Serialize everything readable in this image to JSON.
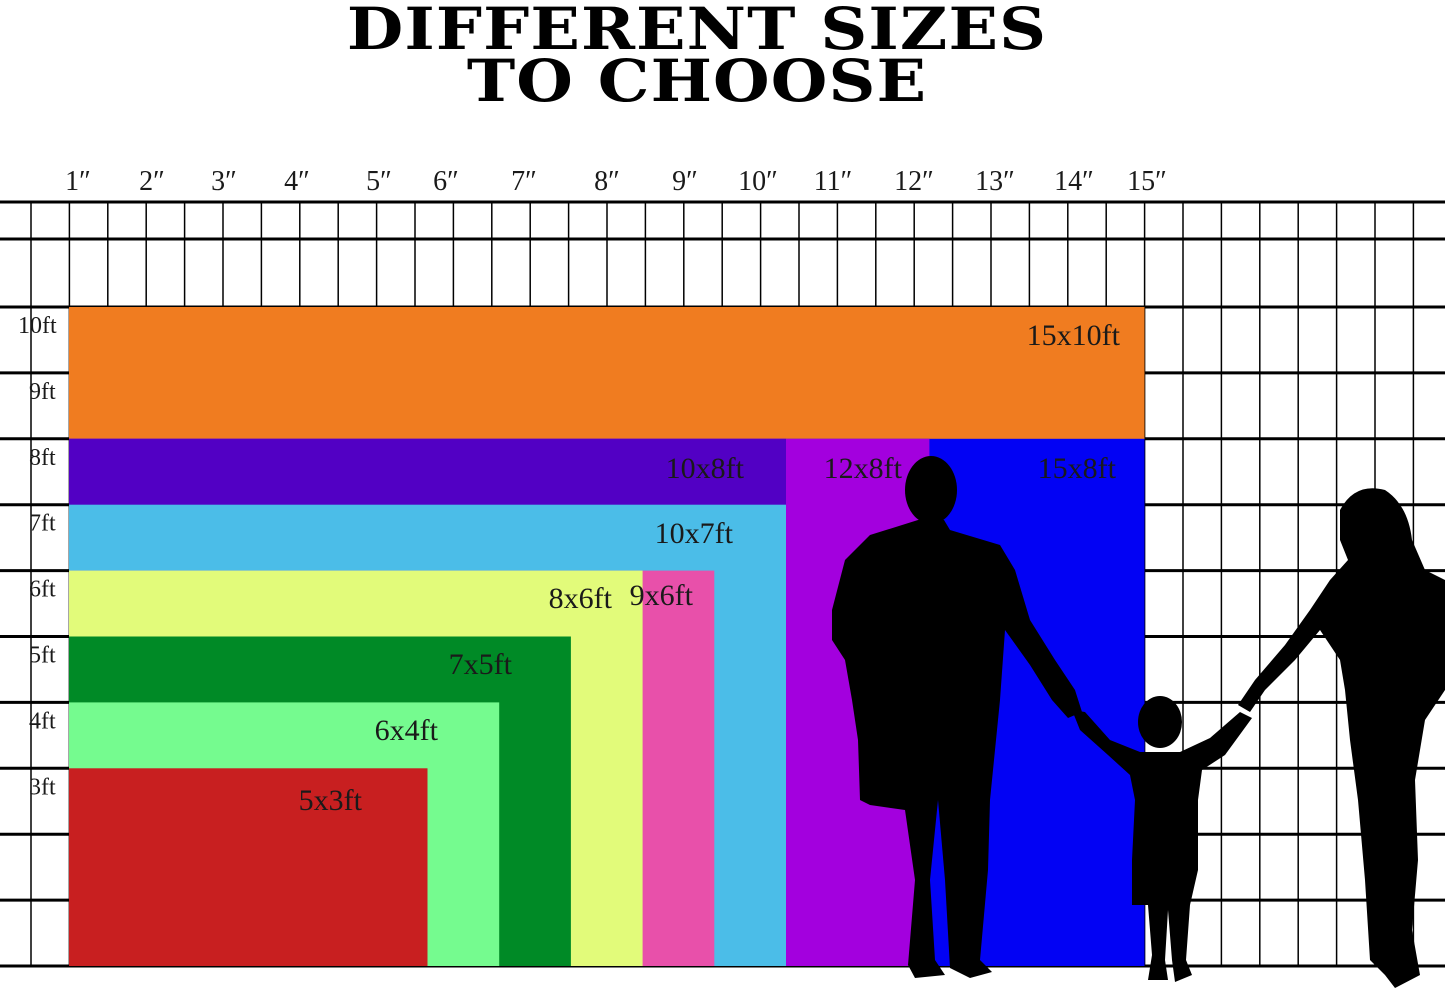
{
  "title": {
    "line1": "DIFFERENT SIZES",
    "line2": "TO CHOOSE"
  },
  "width_labels": [
    "1″",
    "2″",
    "3″",
    "4″",
    "5″",
    "6″",
    "7″",
    "8″",
    "9″",
    "10″",
    "11″",
    "12″",
    "13″",
    "14″",
    "15″"
  ],
  "height_labels": [
    "10ft",
    "9ft",
    "8ft",
    "7ft",
    "6ft",
    "5ft",
    "4ft",
    "3ft"
  ],
  "sizes": [
    {
      "label": "15x10ft",
      "width_ft": 15,
      "height_ft": 10,
      "color": "#F07C20"
    },
    {
      "label": "15x8ft",
      "width_ft": 15,
      "height_ft": 8,
      "color": "#0202F4"
    },
    {
      "label": "12x8ft",
      "width_ft": 12,
      "height_ft": 8,
      "color": "#A300DE"
    },
    {
      "label": "10x8ft",
      "width_ft": 10,
      "height_ft": 8,
      "color": "#5200C4"
    },
    {
      "label": "10x7ft",
      "width_ft": 10,
      "height_ft": 7,
      "color": "#4BBDE8"
    },
    {
      "label": "9x6ft",
      "width_ft": 9,
      "height_ft": 6,
      "color": "#E850AA"
    },
    {
      "label": "8x6ft",
      "width_ft": 8,
      "height_ft": 6,
      "color": "#E2FB7A"
    },
    {
      "label": "7x5ft",
      "width_ft": 7,
      "height_ft": 5,
      "color": "#008A26"
    },
    {
      "label": "6x4ft",
      "width_ft": 6,
      "height_ft": 4,
      "color": "#75FB8F"
    },
    {
      "label": "5x3ft",
      "width_ft": 5,
      "height_ft": 3,
      "color": "#C81F20"
    }
  ]
}
